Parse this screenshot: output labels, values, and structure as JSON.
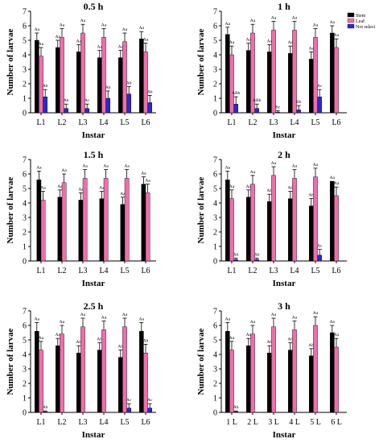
{
  "figure": {
    "legend": {
      "placement": "top-right",
      "entries": [
        {
          "name": "Stem",
          "color": "#000000"
        },
        {
          "name": "Leaf",
          "color": "#f06eaa"
        },
        {
          "name": "Not select",
          "color": "#2a2ad0"
        }
      ]
    }
  },
  "chart_data": [
    {
      "type": "bar",
      "title": "0.5 h",
      "xlabel": "Instar",
      "ylabel": "Number of larvae",
      "ylim": [
        0,
        7
      ],
      "yticks": [
        0,
        1,
        2,
        3,
        4,
        5,
        6,
        7
      ],
      "categories": [
        "L1",
        "L2",
        "L3",
        "L4",
        "L5",
        "L6"
      ],
      "series": [
        {
          "name": "Stem",
          "values": [
            5.0,
            4.5,
            4.2,
            3.8,
            3.8,
            5.1
          ],
          "errors": [
            0.5,
            0.5,
            0.5,
            0.5,
            0.5,
            0.5
          ],
          "letters": [
            "Aa",
            "Aa",
            "Aa",
            "Aa",
            "Aa",
            "Aa"
          ]
        },
        {
          "name": "Leaf",
          "values": [
            3.9,
            5.2,
            5.5,
            5.2,
            4.9,
            4.2
          ],
          "errors": [
            0.6,
            0.6,
            0.6,
            0.6,
            0.6,
            0.6
          ],
          "letters": [
            "Aa",
            "Aa",
            "Aa",
            "Aa",
            "Aa",
            "Aa"
          ]
        },
        {
          "name": "Not select",
          "values": [
            1.1,
            0.3,
            0.3,
            1.0,
            1.3,
            0.7
          ],
          "errors": [
            0.5,
            0.3,
            0.3,
            0.5,
            0.5,
            0.5
          ],
          "letters": [
            "Ab",
            "Ab",
            "Ac",
            "Ab",
            "Ab",
            "Ab"
          ]
        }
      ]
    },
    {
      "type": "bar",
      "title": "1 h",
      "xlabel": "Instar",
      "ylabel": "Number of larvae",
      "ylim": [
        0,
        7
      ],
      "yticks": [
        0,
        1,
        2,
        3,
        4,
        5,
        6,
        7
      ],
      "categories": [
        "L1",
        "L2",
        "L3",
        "L4",
        "L5",
        "L6"
      ],
      "series": [
        {
          "name": "Stem",
          "values": [
            5.4,
            4.3,
            4.2,
            4.1,
            3.7,
            5.5
          ],
          "errors": [
            0.5,
            0.5,
            0.5,
            0.5,
            0.5,
            0.5
          ],
          "letters": [
            "Aa",
            "Aa",
            "Aa",
            "Aa",
            "Aa",
            "Aa"
          ]
        },
        {
          "name": "Leaf",
          "values": [
            4.0,
            5.5,
            5.7,
            5.7,
            5.2,
            4.5
          ],
          "errors": [
            0.6,
            0.6,
            0.6,
            0.6,
            0.6,
            0.6
          ],
          "letters": [
            "Aa",
            "Aa",
            "Aa",
            "Aa",
            "Aa",
            "Aa"
          ]
        },
        {
          "name": "Not select",
          "values": [
            0.6,
            0.3,
            0.05,
            0.2,
            1.1,
            0.0
          ],
          "errors": [
            0.5,
            0.3,
            0.1,
            0.3,
            0.5,
            0.0
          ],
          "letters": [
            "ABb",
            "ABb",
            "Bc",
            "Bb",
            "Ac",
            ""
          ]
        }
      ]
    },
    {
      "type": "bar",
      "title": "1.5 h",
      "xlabel": "Instar",
      "ylabel": "Number of larvae",
      "ylim": [
        0,
        7
      ],
      "yticks": [
        0,
        1,
        2,
        3,
        4,
        5,
        6,
        7
      ],
      "categories": [
        "L1",
        "L2",
        "L3",
        "L4",
        "L5",
        "L6"
      ],
      "series": [
        {
          "name": "Stem",
          "values": [
            5.6,
            4.4,
            4.2,
            4.3,
            3.9,
            5.3
          ],
          "errors": [
            0.6,
            0.5,
            0.5,
            0.5,
            0.5,
            0.5
          ],
          "letters": [
            "Aa",
            "Aa",
            "Aa",
            "Aa",
            "Aa",
            "Aa"
          ]
        },
        {
          "name": "Leaf",
          "values": [
            4.2,
            5.4,
            5.7,
            5.7,
            5.7,
            4.7
          ],
          "errors": [
            0.6,
            0.6,
            0.6,
            0.6,
            0.6,
            0.6
          ],
          "letters": [
            "Aa",
            "Aa",
            "Aa",
            "Aa",
            "Aa",
            "Aa"
          ]
        }
      ]
    },
    {
      "type": "bar",
      "title": "2  h",
      "xlabel": "Instar",
      "ylabel": "Number of larvae",
      "ylim": [
        0,
        7
      ],
      "yticks": [
        0,
        1,
        2,
        3,
        4,
        5,
        6,
        7
      ],
      "categories": [
        "L1",
        "L2",
        "L3",
        "L4",
        "L5",
        "L6"
      ],
      "series": [
        {
          "name": "Stem",
          "values": [
            5.6,
            4.4,
            4.1,
            4.3,
            3.8,
            5.5
          ],
          "errors": [
            0.6,
            0.5,
            0.5,
            0.5,
            0.5,
            0.0
          ],
          "letters": [
            "Aa",
            "Aa",
            "Ab",
            "Ab",
            "Ab",
            "Aa"
          ]
        },
        {
          "name": "Leaf",
          "values": [
            4.3,
            5.3,
            5.9,
            5.7,
            5.8,
            4.5
          ],
          "errors": [
            0.6,
            0.6,
            0.6,
            0.6,
            0.6,
            0.6
          ],
          "letters": [
            "Aa",
            "Aa",
            "Aa",
            "Aa",
            "Aa",
            "Aa"
          ]
        },
        {
          "name": "Not select",
          "values": [
            0.1,
            0.1,
            0.0,
            0.0,
            0.4,
            0.0
          ],
          "errors": [
            0.1,
            0.1,
            0.0,
            0.0,
            0.4,
            0.0
          ],
          "letters": [
            "Ab",
            "Ab",
            "",
            "",
            "Ac",
            ""
          ]
        }
      ]
    },
    {
      "type": "bar",
      "title": "2.5 h",
      "xlabel": "Instar",
      "ylabel": "Number of larvae",
      "ylim": [
        0,
        7
      ],
      "yticks": [
        0,
        1,
        2,
        3,
        4,
        5,
        6,
        7
      ],
      "categories": [
        "L1",
        "L2",
        "L3",
        "L4",
        "L5",
        "L6"
      ],
      "series": [
        {
          "name": "Stem",
          "values": [
            5.6,
            4.6,
            4.1,
            4.3,
            3.8,
            5.6
          ],
          "errors": [
            0.6,
            0.5,
            0.5,
            0.5,
            0.5,
            0.6
          ],
          "letters": [
            "Aa",
            "Aa",
            "Ab",
            "Ab",
            "Ab",
            "Aa"
          ]
        },
        {
          "name": "Leaf",
          "values": [
            4.3,
            5.4,
            5.9,
            5.7,
            5.9,
            4.1
          ],
          "errors": [
            0.6,
            0.6,
            0.6,
            0.6,
            0.6,
            0.6
          ],
          "letters": [
            "Aa",
            "Aa",
            "Aa",
            "Aa",
            "Aa",
            "Ab"
          ]
        },
        {
          "name": "Not select",
          "values": [
            0.05,
            0.0,
            0.0,
            0.0,
            0.3,
            0.3
          ],
          "errors": [
            0.05,
            0.0,
            0.0,
            0.0,
            0.3,
            0.3
          ],
          "letters": [
            "Ab",
            "",
            "",
            "",
            "Ac",
            "Ac"
          ]
        }
      ]
    },
    {
      "type": "bar",
      "title": "3 h",
      "xlabel": "Instar",
      "ylabel": "Number of larvae",
      "ylim": [
        0,
        7
      ],
      "yticks": [
        0,
        1,
        2,
        3,
        4,
        5,
        6,
        7
      ],
      "categories": [
        "1 L",
        "2 L",
        "3 L",
        "4 L",
        "5 L",
        "6 L"
      ],
      "series": [
        {
          "name": "Stem",
          "values": [
            5.6,
            4.6,
            4.1,
            4.3,
            3.9,
            5.5
          ],
          "errors": [
            0.6,
            0.5,
            0.5,
            0.5,
            0.5,
            0.5
          ],
          "letters": [
            "Aa",
            "Aa",
            "Ab",
            "Ab",
            "Ab",
            "Aa"
          ]
        },
        {
          "name": "Leaf",
          "values": [
            4.3,
            5.4,
            5.9,
            5.7,
            6.0,
            4.5
          ],
          "errors": [
            0.6,
            0.6,
            0.6,
            0.6,
            0.6,
            0.6
          ],
          "letters": [
            "Aa",
            "Aa",
            "Aa",
            "Aa",
            "Aa",
            "Aa"
          ]
        },
        {
          "name": "Not select",
          "values": [
            0.05,
            0.0,
            0.0,
            0.0,
            0.0,
            0.0
          ],
          "errors": [
            0.05,
            0.0,
            0.0,
            0.0,
            0.0,
            0.0
          ],
          "letters": [
            "Ab",
            "",
            "",
            "",
            "",
            ""
          ]
        }
      ]
    }
  ]
}
